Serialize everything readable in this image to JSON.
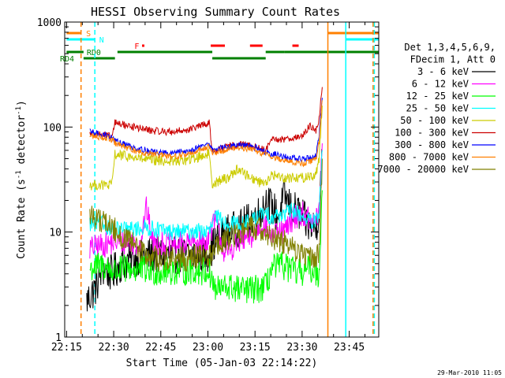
{
  "chart_data": {
    "type": "line",
    "title": "HESSI Observing Summary Count Rates",
    "xlabel": "Start Time (05-Jan-03 22:14:22)",
    "ylabel_main": "Count Rate (s",
    "ylabel_sup": "-1",
    "ylabel_mid": " detector",
    "ylabel_sup2": "-1",
    "ylabel_end": ")",
    "footer": "29-Mar-2010 11:05",
    "x_axis": {
      "unit": "minutes after 22:14:22",
      "range": [
        0,
        100
      ],
      "ticks": [
        {
          "t": 0.6,
          "label": "22:15"
        },
        {
          "t": 15.6,
          "label": "22:30"
        },
        {
          "t": 30.6,
          "label": "22:45"
        },
        {
          "t": 45.6,
          "label": "23:00"
        },
        {
          "t": 60.6,
          "label": "23:15"
        },
        {
          "t": 75.6,
          "label": "23:30"
        },
        {
          "t": 90.6,
          "label": "23:45"
        }
      ]
    },
    "y_axis": {
      "scale": "log",
      "range": [
        1,
        1000
      ],
      "ticks": [
        {
          "v": 1,
          "label": "1"
        },
        {
          "v": 10,
          "label": "10"
        },
        {
          "v": 100,
          "label": "100"
        },
        {
          "v": 1000,
          "label": "1000"
        }
      ]
    },
    "legend": {
      "placement": "right",
      "header": [
        "Det 1,3,4,5,6,9,",
        "FDecim 1, Att 0"
      ]
    },
    "series": [
      {
        "name": "3 - 6 keV",
        "color": "#000000",
        "points": [
          [
            7,
            2.2
          ],
          [
            10,
            3
          ],
          [
            12,
            4.5
          ],
          [
            15,
            4
          ],
          [
            18,
            5
          ],
          [
            25,
            6
          ],
          [
            35,
            6
          ],
          [
            45,
            6
          ],
          [
            48,
            8
          ],
          [
            52,
            10
          ],
          [
            56,
            11
          ],
          [
            59,
            13
          ],
          [
            62,
            15
          ],
          [
            64,
            20
          ],
          [
            66,
            17
          ],
          [
            68,
            14
          ],
          [
            70,
            22
          ],
          [
            72,
            17
          ],
          [
            75,
            15
          ],
          [
            77,
            12
          ],
          [
            80,
            11
          ],
          [
            81,
            16
          ],
          [
            82,
            60
          ]
        ]
      },
      {
        "name": "6 - 12 keV",
        "color": "#ff00ff",
        "points": [
          [
            8,
            7
          ],
          [
            12,
            7.5
          ],
          [
            16,
            8
          ],
          [
            20,
            8
          ],
          [
            24,
            7.5
          ],
          [
            26,
            17
          ],
          [
            28,
            8
          ],
          [
            34,
            7.5
          ],
          [
            40,
            8
          ],
          [
            45,
            8
          ],
          [
            48,
            13
          ],
          [
            51,
            6
          ],
          [
            55,
            8
          ],
          [
            60,
            9
          ],
          [
            63,
            12
          ],
          [
            66,
            9
          ],
          [
            70,
            10
          ],
          [
            73,
            14
          ],
          [
            76,
            15
          ],
          [
            79,
            12
          ],
          [
            81,
            15
          ],
          [
            82,
            70
          ]
        ]
      },
      {
        "name": "12 - 25 keV",
        "color": "#00ff00",
        "points": [
          [
            8,
            4.5
          ],
          [
            12,
            4.8
          ],
          [
            16,
            4.2
          ],
          [
            20,
            4.5
          ],
          [
            30,
            4.2
          ],
          [
            40,
            4.3
          ],
          [
            46,
            4.2
          ],
          [
            48,
            2.8
          ],
          [
            52,
            3
          ],
          [
            56,
            2.8
          ],
          [
            60,
            2.8
          ],
          [
            64,
            3
          ],
          [
            66,
            4.5
          ],
          [
            70,
            4.8
          ],
          [
            74,
            4
          ],
          [
            78,
            4.5
          ],
          [
            81,
            4
          ],
          [
            82,
            25
          ]
        ]
      },
      {
        "name": "25 - 50 keV",
        "color": "#00ffff",
        "points": [
          [
            8,
            12
          ],
          [
            12,
            12
          ],
          [
            16,
            10.5
          ],
          [
            20,
            10.5
          ],
          [
            26,
            11
          ],
          [
            34,
            10
          ],
          [
            42,
            10.2
          ],
          [
            46,
            10
          ],
          [
            48,
            14
          ],
          [
            52,
            12
          ],
          [
            56,
            12
          ],
          [
            60,
            13
          ],
          [
            63,
            15
          ],
          [
            66,
            14
          ],
          [
            70,
            15
          ],
          [
            73,
            16
          ],
          [
            76,
            14
          ],
          [
            79,
            12
          ],
          [
            81,
            14
          ],
          [
            82,
            60
          ]
        ]
      },
      {
        "name": "50 - 100 keV",
        "color": "#cccc00",
        "points": [
          [
            8,
            28
          ],
          [
            12,
            28
          ],
          [
            15,
            28
          ],
          [
            16,
            55
          ],
          [
            22,
            51
          ],
          [
            28,
            48
          ],
          [
            34,
            47
          ],
          [
            40,
            49
          ],
          [
            46,
            56
          ],
          [
            47,
            29
          ],
          [
            52,
            33
          ],
          [
            55,
            40
          ],
          [
            58,
            35
          ],
          [
            62,
            30
          ],
          [
            65,
            31
          ],
          [
            66,
            35
          ],
          [
            70,
            33
          ],
          [
            76,
            33
          ],
          [
            80,
            35
          ],
          [
            81,
            50
          ],
          [
            82,
            160
          ]
        ]
      },
      {
        "name": "100 - 300 keV",
        "color": "#cc0000",
        "points": [
          [
            8,
            88
          ],
          [
            12,
            85
          ],
          [
            15,
            80
          ],
          [
            16,
            110
          ],
          [
            22,
            100
          ],
          [
            28,
            92
          ],
          [
            34,
            90
          ],
          [
            40,
            95
          ],
          [
            46,
            110
          ],
          [
            47,
            58
          ],
          [
            52,
            65
          ],
          [
            56,
            68
          ],
          [
            60,
            66
          ],
          [
            64,
            60
          ],
          [
            66,
            75
          ],
          [
            70,
            77
          ],
          [
            76,
            82
          ],
          [
            78,
            105
          ],
          [
            80,
            90
          ],
          [
            81,
            120
          ],
          [
            82,
            240
          ]
        ]
      },
      {
        "name": "300 - 800 keV",
        "color": "#0000ff",
        "points": [
          [
            8,
            90
          ],
          [
            12,
            85
          ],
          [
            15,
            80
          ],
          [
            16,
            74
          ],
          [
            22,
            64
          ],
          [
            28,
            58
          ],
          [
            34,
            56
          ],
          [
            40,
            60
          ],
          [
            46,
            70
          ],
          [
            47,
            60
          ],
          [
            52,
            65
          ],
          [
            56,
            67
          ],
          [
            60,
            65
          ],
          [
            64,
            58
          ],
          [
            66,
            56
          ],
          [
            70,
            52
          ],
          [
            76,
            49
          ],
          [
            80,
            53
          ],
          [
            81,
            80
          ],
          [
            82,
            190
          ]
        ]
      },
      {
        "name": "800 - 7000 keV",
        "color": "#ff8000",
        "points": [
          [
            8,
            82
          ],
          [
            12,
            80
          ],
          [
            15,
            76
          ],
          [
            16,
            70
          ],
          [
            22,
            60
          ],
          [
            28,
            55
          ],
          [
            34,
            52
          ],
          [
            40,
            56
          ],
          [
            46,
            66
          ],
          [
            47,
            56
          ],
          [
            52,
            62
          ],
          [
            56,
            63
          ],
          [
            60,
            61
          ],
          [
            64,
            55
          ],
          [
            66,
            52
          ],
          [
            70,
            48
          ],
          [
            76,
            45
          ],
          [
            80,
            49
          ],
          [
            81,
            72
          ],
          [
            82,
            180
          ]
        ]
      },
      {
        "name": "7000 - 20000 keV",
        "color": "#808000",
        "points": [
          [
            8,
            14.5
          ],
          [
            12,
            13
          ],
          [
            16,
            10.5
          ],
          [
            18,
            9
          ],
          [
            22,
            7.5
          ],
          [
            26,
            6
          ],
          [
            30,
            5.5
          ],
          [
            40,
            5.6
          ],
          [
            46,
            6
          ],
          [
            48,
            7
          ],
          [
            52,
            8.5
          ],
          [
            56,
            10
          ],
          [
            60,
            11
          ],
          [
            63,
            10.5
          ],
          [
            66,
            9
          ],
          [
            70,
            8
          ],
          [
            74,
            6.5
          ],
          [
            78,
            5.8
          ],
          [
            81,
            6
          ],
          [
            82,
            50
          ]
        ]
      }
    ],
    "flags": [
      {
        "label": "S",
        "color": "#ff8000",
        "segments": [
          [
            0.6,
            5
          ]
        ],
        "post": [
          [
            83.8,
            100
          ]
        ],
        "row": 1
      },
      {
        "label": "N",
        "color": "#00ffff",
        "segments": [
          [
            0.6,
            9.5
          ]
        ],
        "post": [
          [
            89.5,
            100
          ]
        ],
        "row": 2
      },
      {
        "label": "F",
        "color": "#ff0000",
        "segments": [
          [
            46.5,
            51
          ],
          [
            59,
            63
          ],
          [
            72.5,
            74.5
          ]
        ],
        "dots": [
          25
        ],
        "row": 3
      },
      {
        "label": "RD0",
        "color": "#008000",
        "segments": [
          [
            0.6,
            6
          ]
        ],
        "row": 4
      },
      {
        "label": "RD4",
        "color": "#008000",
        "segments": [
          [
            6,
            16
          ],
          [
            16.8,
            47
          ],
          [
            47,
            64
          ],
          [
            64,
            70
          ],
          [
            70,
            100
          ]
        ],
        "lowSegments": [
          [
            6,
            16
          ],
          [
            47,
            64
          ]
        ],
        "row": 5
      }
    ],
    "vertical_lines": [
      {
        "t": 5.2,
        "color": "#ff8000",
        "dash": true
      },
      {
        "t": 9.6,
        "color": "#00ffff",
        "dash": true
      },
      {
        "t": 83.8,
        "color": "#ff8000",
        "dash": false
      },
      {
        "t": 89.5,
        "color": "#00ffff",
        "dash": false
      },
      {
        "t": 98.2,
        "color": "#ff8000",
        "dash": true
      },
      {
        "t": 98.6,
        "color": "#00ffff",
        "dash": true
      }
    ]
  }
}
